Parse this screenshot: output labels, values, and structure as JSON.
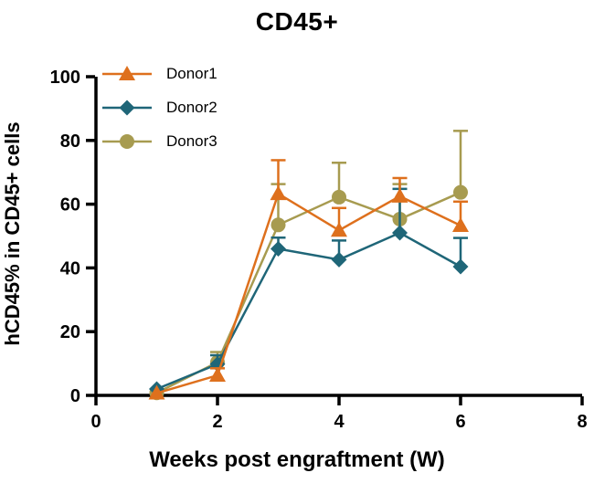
{
  "chart_data": {
    "type": "line",
    "title": "CD45+",
    "xlabel": "Weeks post engraftment (W)",
    "ylabel": "hCD45% in CD45+ cells",
    "xlim": [
      0,
      8
    ],
    "ylim": [
      0,
      100
    ],
    "x_ticks": [
      0,
      2,
      4,
      6,
      8
    ],
    "y_ticks": [
      0,
      20,
      40,
      60,
      80,
      100
    ],
    "grid": false,
    "legend_position": "top-left",
    "x": [
      1,
      2,
      3,
      4,
      5,
      6
    ],
    "series": [
      {
        "name": "Donor1",
        "marker": "triangle",
        "color": "#DE701D",
        "values": [
          0.7,
          6.3,
          63.3,
          51.8,
          62.5,
          53.3
        ],
        "err_up": [
          0,
          2.2,
          10.5,
          7.0,
          5.7,
          7.5
        ]
      },
      {
        "name": "Donor2",
        "marker": "diamond",
        "color": "#1F6678",
        "values": [
          2.0,
          9.8,
          46.0,
          42.6,
          51.0,
          40.4
        ],
        "err_up": [
          0,
          2.8,
          3.5,
          6.0,
          13.8,
          9.0
        ]
      },
      {
        "name": "Donor3",
        "marker": "circle",
        "color": "#A79B50",
        "values": [
          0.8,
          10.4,
          53.5,
          62.2,
          55.3,
          63.7
        ],
        "err_up": [
          0,
          3.2,
          12.8,
          10.8,
          11.0,
          19.3
        ]
      }
    ],
    "axis_color": "#000000",
    "background_color": "#ffffff"
  }
}
